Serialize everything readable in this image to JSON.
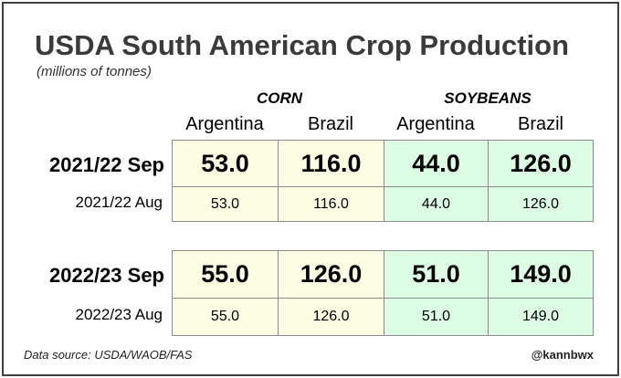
{
  "title": "USDA South American Crop Production",
  "subtitle": "(millions of tonnes)",
  "footer": {
    "source": "Data source: USDA/WAOB/FAS",
    "handle": "@kannbwx"
  },
  "chart_data": {
    "type": "table",
    "groups": [
      "CORN",
      "SOYBEANS"
    ],
    "columns": [
      "Argentina",
      "Brazil",
      "Argentina",
      "Brazil"
    ],
    "rows": [
      {
        "label": "2021/22 Sep",
        "values": [
          "53.0",
          "116.0",
          "44.0",
          "126.0"
        ]
      },
      {
        "label": "2021/22 Aug",
        "values": [
          "53.0",
          "116.0",
          "44.0",
          "126.0"
        ]
      },
      {
        "label": "2022/23 Sep",
        "values": [
          "55.0",
          "126.0",
          "51.0",
          "149.0"
        ]
      },
      {
        "label": "2022/23 Aug",
        "values": [
          "55.0",
          "126.0",
          "51.0",
          "149.0"
        ]
      }
    ]
  }
}
